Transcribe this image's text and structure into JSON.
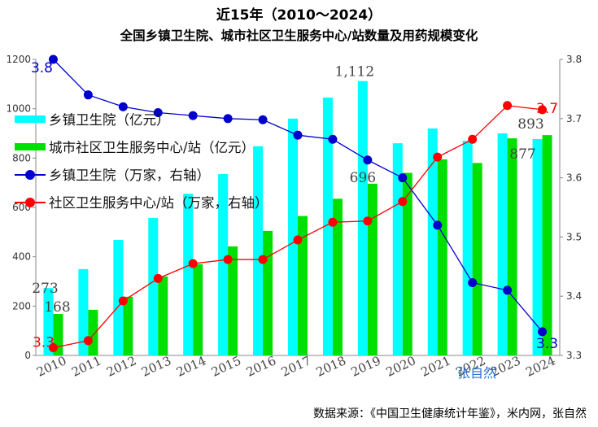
{
  "title": "近15年（2010～2024）",
  "subtitle": "全国乡镇卫生院、城市社区卫生服务中心/站数量及用药规模变化",
  "source": "数据来源：《中国卫生健康统计年鉴》，米内网，张自然",
  "watermark": "张自然",
  "colors": {
    "cyan": "#00FFFF",
    "green": "#00E000",
    "blue": "#0000CC",
    "red": "#FF0000"
  },
  "chart_data": {
    "type": "bar",
    "categories": [
      "2010",
      "2011",
      "2012",
      "2013",
      "2014",
      "2015",
      "2016",
      "2017",
      "2018",
      "2019",
      "2020",
      "2021",
      "2022",
      "2023",
      "2024"
    ],
    "ylim": [
      0,
      1200
    ],
    "y2lim": [
      3.3,
      3.8
    ],
    "yticks": [
      "0",
      "200",
      "400",
      "600",
      "800",
      "1000",
      "1200"
    ],
    "y2ticks": [
      "3.3",
      "3.4",
      "3.5",
      "3.6",
      "3.7",
      "3.8"
    ],
    "grid": false,
    "legend_position": "top-left",
    "series": [
      {
        "name": "乡镇卫生院（亿元）",
        "kind": "bar",
        "axis": "left",
        "color": "#00FFFF",
        "values": [
          273,
          350,
          468,
          557,
          655,
          735,
          848,
          960,
          1045,
          1112,
          860,
          920,
          870,
          900,
          877
        ]
      },
      {
        "name": "城市社区卫生服务中心/站（亿元）",
        "kind": "bar",
        "axis": "left",
        "color": "#00E000",
        "values": [
          168,
          185,
          238,
          320,
          370,
          442,
          505,
          565,
          635,
          696,
          740,
          795,
          780,
          880,
          893
        ]
      },
      {
        "name": "乡镇卫生院（万家，右轴）",
        "kind": "line",
        "axis": "right",
        "color": "#0000CC",
        "values": [
          3.8,
          3.74,
          3.72,
          3.71,
          3.705,
          3.7,
          3.698,
          3.672,
          3.665,
          3.63,
          3.6,
          3.52,
          3.423,
          3.41,
          3.34
        ]
      },
      {
        "name": "社区卫生服务中心/站（万家，右轴）",
        "kind": "line",
        "axis": "right",
        "color": "#FF0000",
        "values": [
          3.313,
          3.325,
          3.392,
          3.43,
          3.455,
          3.462,
          3.462,
          3.495,
          3.525,
          3.527,
          3.56,
          3.635,
          3.665,
          3.722,
          3.715
        ]
      }
    ],
    "data_labels": [
      {
        "text": "273"
      },
      {
        "text": "168"
      },
      {
        "text": "1,112"
      },
      {
        "text": "696"
      },
      {
        "text": "877"
      },
      {
        "text": "893"
      },
      {
        "text": "3.8"
      },
      {
        "text": "3.3"
      },
      {
        "text": "3.3"
      },
      {
        "text": "3.7"
      }
    ]
  }
}
